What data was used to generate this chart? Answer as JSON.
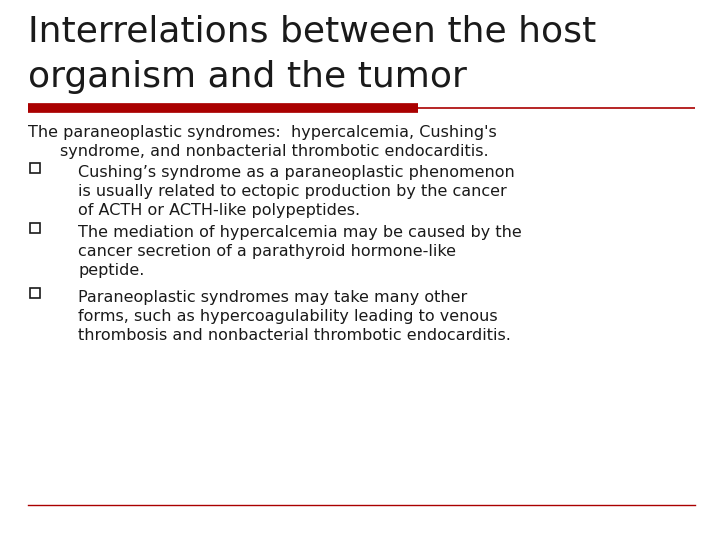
{
  "title_line1": "Interrelations between the host",
  "title_line2": "organism and the tumor",
  "title_fontsize": 26,
  "title_color": "#1a1a1a",
  "font_family": "DejaVu Sans",
  "red_bar_color": "#aa0000",
  "red_line_color": "#aa0000",
  "body_fontsize": 11.5,
  "body_color": "#1a1a1a",
  "background_color": "#ffffff",
  "intro_text_line1": "The paraneoplastic syndromes:  hypercalcemia, Cushing's",
  "intro_text_line2": "syndrome, and nonbacterial thrombotic endocarditis.",
  "bullet1_line1": "Cushing’s syndrome as a paraneoplastic phenomenon",
  "bullet1_line2": "is usually related to ectopic production by the cancer",
  "bullet1_line3": "of ACTH or ACTH-like polypeptides.",
  "bullet2_line1": "The mediation of hypercalcemia may be caused by the",
  "bullet2_line2": "cancer secretion of a parathyroid hormone-like",
  "bullet2_line3": "peptide.",
  "bullet3_line1": "Paraneoplastic syndromes may take many other",
  "bullet3_line2": "forms, such as hypercoagulability leading to venous",
  "bullet3_line3": "thrombosis and nonbacterial thrombotic endocarditis."
}
